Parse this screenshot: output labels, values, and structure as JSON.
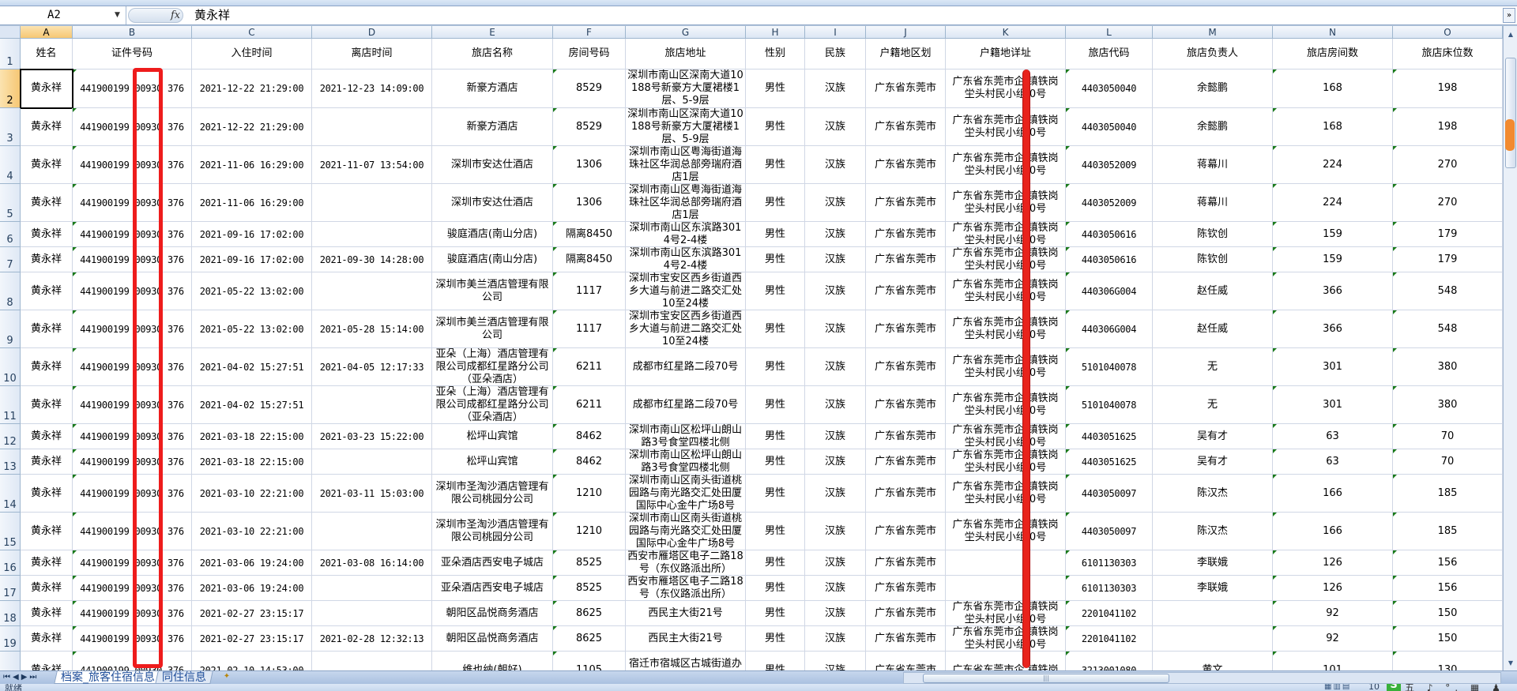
{
  "formula_bar": {
    "name_box": "A2",
    "fx_label": "fx",
    "content": "黄永祥"
  },
  "columns": [
    "A",
    "B",
    "C",
    "D",
    "E",
    "F",
    "G",
    "H",
    "I",
    "J",
    "K",
    "L",
    "M",
    "N",
    "O"
  ],
  "selected_cell": "A2",
  "headers": [
    "姓名",
    "证件号码",
    "入住时间",
    "离店时间",
    "旅店名称",
    "房间号码",
    "旅店地址",
    "性别",
    "民族",
    "户籍地区划",
    "户籍地详址",
    "旅店代码",
    "旅店负责人",
    "旅店房间数",
    "旅店床位数"
  ],
  "rows": [
    [
      "黄永祥",
      "441900199 00930 376",
      "2021-12-22 21:29:00",
      "2021-12-23 14:09:00",
      "新豪方酒店",
      "8529",
      "深圳市南山区深南大道10188号新豪方大厦裙楼1层、5-9层",
      "男性",
      "汉族",
      "广东省东莞市",
      "广东省东莞市企 镇铁岗坣头村民小组 0号",
      "4403050040",
      "余懿鹏",
      "168",
      "198"
    ],
    [
      "黄永祥",
      "441900199 00930 376",
      "2021-12-22 21:29:00",
      "",
      "新豪方酒店",
      "8529",
      "深圳市南山区深南大道10188号新豪方大厦裙楼1层、5-9层",
      "男性",
      "汉族",
      "广东省东莞市",
      "广东省东莞市企 镇铁岗坣头村民小组 0号",
      "4403050040",
      "余懿鹏",
      "168",
      "198"
    ],
    [
      "黄永祥",
      "441900199 00930 376",
      "2021-11-06 16:29:00",
      "2021-11-07 13:54:00",
      "深圳市安达仕酒店",
      "1306",
      "深圳市南山区粤海街道海珠社区华润总部旁瑞府酒店1层",
      "男性",
      "汉族",
      "广东省东莞市",
      "广东省东莞市企 镇铁岗坣头村民小组 0号",
      "4403052009",
      "蒋幕川",
      "224",
      "270"
    ],
    [
      "黄永祥",
      "441900199 00930 376",
      "2021-11-06 16:29:00",
      "",
      "深圳市安达仕酒店",
      "1306",
      "深圳市南山区粤海街道海珠社区华润总部旁瑞府酒店1层",
      "男性",
      "汉族",
      "广东省东莞市",
      "广东省东莞市企 镇铁岗坣头村民小组 0号",
      "4403052009",
      "蒋幕川",
      "224",
      "270"
    ],
    [
      "黄永祥",
      "441900199 00930 376",
      "2021-09-16 17:02:00",
      "",
      "骏庭酒店(南山分店)",
      "隔离8450",
      "深圳市南山区东滨路3014号2-4楼",
      "男性",
      "汉族",
      "广东省东莞市",
      "广东省东莞市企 镇铁岗坣头村民小组 0号",
      "4403050616",
      "陈钦创",
      "159",
      "179"
    ],
    [
      "黄永祥",
      "441900199 00930 376",
      "2021-09-16 17:02:00",
      "2021-09-30 14:28:00",
      "骏庭酒店(南山分店)",
      "隔离8450",
      "深圳市南山区东滨路3014号2-4楼",
      "男性",
      "汉族",
      "广东省东莞市",
      "广东省东莞市企 镇铁岗坣头村民小组 0号",
      "4403050616",
      "陈钦创",
      "159",
      "179"
    ],
    [
      "黄永祥",
      "441900199 00930 376",
      "2021-05-22 13:02:00",
      "",
      "深圳市美兰酒店管理有限公司",
      "1117",
      "深圳市宝安区西乡街道西乡大道与前进二路交汇处10至24楼",
      "男性",
      "汉族",
      "广东省东莞市",
      "广东省东莞市企 镇铁岗坣头村民小组 0号",
      "440306G004",
      "赵任威",
      "366",
      "548"
    ],
    [
      "黄永祥",
      "441900199 00930 376",
      "2021-05-22 13:02:00",
      "2021-05-28 15:14:00",
      "深圳市美兰酒店管理有限公司",
      "1117",
      "深圳市宝安区西乡街道西乡大道与前进二路交汇处10至24楼",
      "男性",
      "汉族",
      "广东省东莞市",
      "广东省东莞市企 镇铁岗坣头村民小组 0号",
      "440306G004",
      "赵任威",
      "366",
      "548"
    ],
    [
      "黄永祥",
      "441900199 00930 376",
      "2021-04-02 15:27:51",
      "2021-04-05 12:17:33",
      "亚朵（上海）酒店管理有限公司成都红星路分公司（亚朵酒店）",
      "6211",
      "成都市红星路二段70号",
      "男性",
      "汉族",
      "广东省东莞市",
      "广东省东莞市企 镇铁岗坣头村民小组 0号",
      "5101040078",
      "无",
      "301",
      "380"
    ],
    [
      "黄永祥",
      "441900199 00930 376",
      "2021-04-02 15:27:51",
      "",
      "亚朵（上海）酒店管理有限公司成都红星路分公司（亚朵酒店）",
      "6211",
      "成都市红星路二段70号",
      "男性",
      "汉族",
      "广东省东莞市",
      "广东省东莞市企 镇铁岗坣头村民小组 0号",
      "5101040078",
      "无",
      "301",
      "380"
    ],
    [
      "黄永祥",
      "441900199 00930 376",
      "2021-03-18 22:15:00",
      "2021-03-23 15:22:00",
      "松坪山宾馆",
      "8462",
      "深圳市南山区松坪山朗山路3号食堂四楼北侧",
      "男性",
      "汉族",
      "广东省东莞市",
      "广东省东莞市企 镇铁岗坣头村民小组 0号",
      "4403051625",
      "吴有才",
      "63",
      "70"
    ],
    [
      "黄永祥",
      "441900199 00930 376",
      "2021-03-18 22:15:00",
      "",
      "松坪山宾馆",
      "8462",
      "深圳市南山区松坪山朗山路3号食堂四楼北侧",
      "男性",
      "汉族",
      "广东省东莞市",
      "广东省东莞市企 镇铁岗坣头村民小组 0号",
      "4403051625",
      "吴有才",
      "63",
      "70"
    ],
    [
      "黄永祥",
      "441900199 00930 376",
      "2021-03-10 22:21:00",
      "2021-03-11 15:03:00",
      "深圳市圣淘沙酒店管理有限公司桃园分公司",
      "1210",
      "深圳市南山区南头街道桃园路与南光路交汇处田厦国际中心金牛广场8号",
      "男性",
      "汉族",
      "广东省东莞市",
      "广东省东莞市企 镇铁岗坣头村民小组 0号",
      "4403050097",
      "陈汉杰",
      "166",
      "185"
    ],
    [
      "黄永祥",
      "441900199 00930 376",
      "2021-03-10 22:21:00",
      "",
      "深圳市圣淘沙酒店管理有限公司桃园分公司",
      "1210",
      "深圳市南山区南头街道桃园路与南光路交汇处田厦国际中心金牛广场8号",
      "男性",
      "汉族",
      "广东省东莞市",
      "广东省东莞市企 镇铁岗坣头村民小组 0号",
      "4403050097",
      "陈汉杰",
      "166",
      "185"
    ],
    [
      "黄永祥",
      "441900199 00930 376",
      "2021-03-06 19:24:00",
      "2021-03-08 16:14:00",
      "亚朵酒店西安电子城店",
      "8525",
      "西安市雁塔区电子二路18号（东仪路派出所）",
      "男性",
      "汉族",
      "广东省东莞市",
      "",
      "6101130303",
      "李联娥",
      "126",
      "156"
    ],
    [
      "黄永祥",
      "441900199 00930 376",
      "2021-03-06 19:24:00",
      "",
      "亚朵酒店西安电子城店",
      "8525",
      "西安市雁塔区电子二路18号（东仪路派出所）",
      "男性",
      "汉族",
      "广东省东莞市",
      "",
      "6101130303",
      "李联娥",
      "126",
      "156"
    ],
    [
      "黄永祥",
      "441900199 00930 376",
      "2021-02-27 23:15:17",
      "",
      "朝阳区品悦商务酒店",
      "8625",
      "西民主大街21号",
      "男性",
      "汉族",
      "广东省东莞市",
      "广东省东莞市企 镇铁岗坣头村民小组 0号",
      "2201041102",
      "",
      "92",
      "150"
    ],
    [
      "黄永祥",
      "441900199 00930 376",
      "2021-02-27 23:15:17",
      "2021-02-28 12:32:13",
      "朝阳区品悦商务酒店",
      "8625",
      "西民主大街21号",
      "男性",
      "汉族",
      "广东省东莞市",
      "广东省东莞市企 镇铁岗坣头村民小组 0号",
      "2201041102",
      "",
      "92",
      "150"
    ],
    [
      "黄永祥",
      "441900199 00930 376",
      "2021-02-10 14:53:00",
      "",
      "维也纳(朝好)",
      "1105",
      "宿迁市宿城区古城街道办公大楼（地上北一层，地",
      "男性",
      "汉族",
      "广东省东莞市",
      "广东省东莞市企 镇铁岗",
      "3213001080",
      "黄文",
      "101",
      "130"
    ]
  ],
  "sheet_tabs": [
    {
      "label": "档案_旅客住宿信息",
      "active": true
    },
    {
      "label": "同住信息",
      "active": false
    }
  ],
  "status": {
    "text": "就绪",
    "zoom": "10",
    "ime_logo": "S",
    "ime_text": "五 ♪ °, ▦ ♟ ✿"
  },
  "colors": {
    "annotation_red": "#ee1c1c",
    "selected_header": "#f6c774",
    "grid_line": "#d0d7e5",
    "text_flag": "#1a7a1a"
  }
}
